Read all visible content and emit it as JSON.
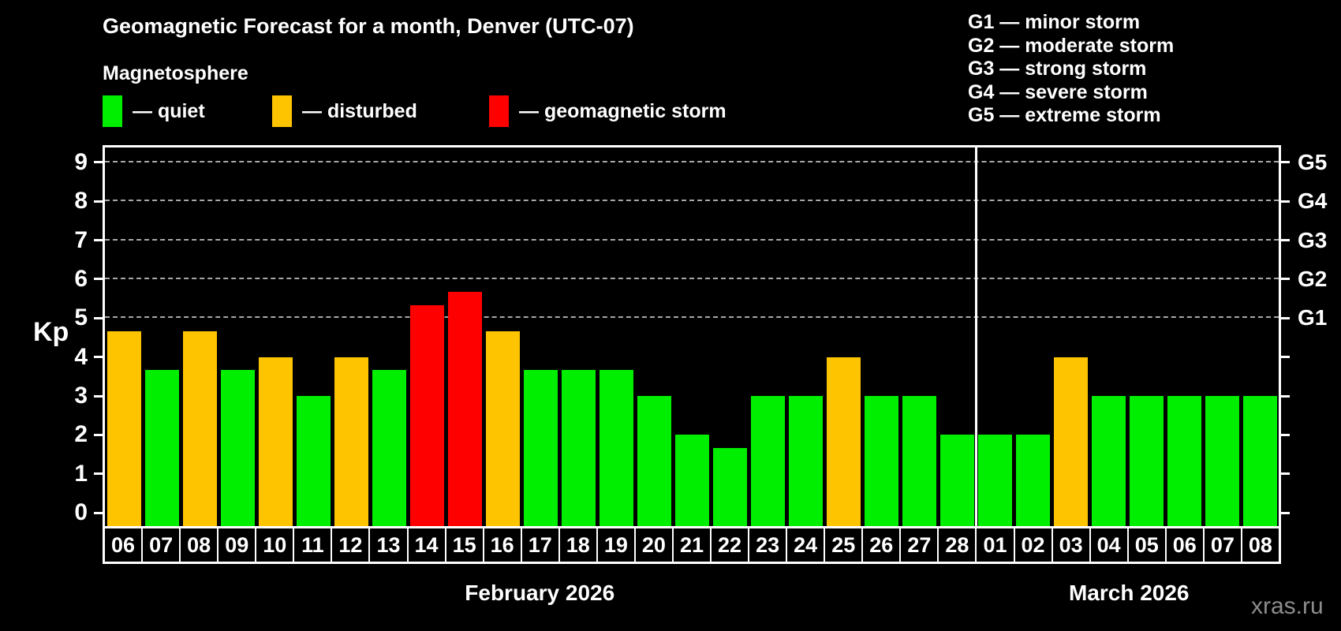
{
  "title": "Geomagnetic Forecast for a month, Denver (UTC-07)",
  "subtitle": "Magnetosphere",
  "legend": {
    "items": [
      {
        "key": "quiet",
        "label": "— quiet",
        "color": "#00ee00"
      },
      {
        "key": "disturbed",
        "label": "— disturbed",
        "color": "#ffc400"
      },
      {
        "key": "storm",
        "label": "— geomagnetic storm",
        "color": "#ff0000"
      }
    ]
  },
  "storm_scale_legend": [
    "G1 — minor storm",
    "G2 — moderate storm",
    "G3 — strong storm",
    "G4 — severe storm",
    "G5 — extreme storm"
  ],
  "watermark": "xras.ru",
  "chart_data": {
    "type": "bar",
    "title": "Geomagnetic Forecast for a month, Denver (UTC-07)",
    "ylabel": "Kp",
    "ylim": [
      -0.34,
      9.38
    ],
    "yticks": [
      0,
      1,
      2,
      3,
      4,
      5,
      6,
      7,
      8,
      9
    ],
    "grid": "dashed horizontal lines at Kp 5-9 only",
    "right_axis_labels": [
      {
        "kp": 5,
        "label": "G1"
      },
      {
        "kp": 6,
        "label": "G2"
      },
      {
        "kp": 7,
        "label": "G3"
      },
      {
        "kp": 8,
        "label": "G4"
      },
      {
        "kp": 9,
        "label": "G5"
      }
    ],
    "months": [
      {
        "label": "February 2026",
        "days": 23
      },
      {
        "label": "March 2026",
        "days": 8
      }
    ],
    "categories": [
      "06",
      "07",
      "08",
      "09",
      "10",
      "11",
      "12",
      "13",
      "14",
      "15",
      "16",
      "17",
      "18",
      "19",
      "20",
      "21",
      "22",
      "23",
      "24",
      "25",
      "26",
      "27",
      "28",
      "01",
      "02",
      "03",
      "04",
      "05",
      "06",
      "07",
      "08"
    ],
    "values": [
      4.67,
      3.67,
      4.67,
      3.67,
      4,
      3,
      4,
      3.67,
      5.33,
      5.67,
      4.67,
      3.67,
      3.67,
      3.67,
      3,
      2,
      1.67,
      3,
      3,
      4,
      3,
      3,
      2,
      2,
      2,
      4,
      3,
      3,
      3,
      3,
      3
    ],
    "status": [
      "disturbed",
      "quiet",
      "disturbed",
      "quiet",
      "disturbed",
      "quiet",
      "disturbed",
      "quiet",
      "storm",
      "storm",
      "disturbed",
      "quiet",
      "quiet",
      "quiet",
      "quiet",
      "quiet",
      "quiet",
      "quiet",
      "quiet",
      "disturbed",
      "quiet",
      "quiet",
      "quiet",
      "quiet",
      "quiet",
      "disturbed",
      "quiet",
      "quiet",
      "quiet",
      "quiet",
      "quiet"
    ],
    "colors": {
      "quiet": "#00ee00",
      "disturbed": "#ffc400",
      "storm": "#ff0000"
    }
  }
}
